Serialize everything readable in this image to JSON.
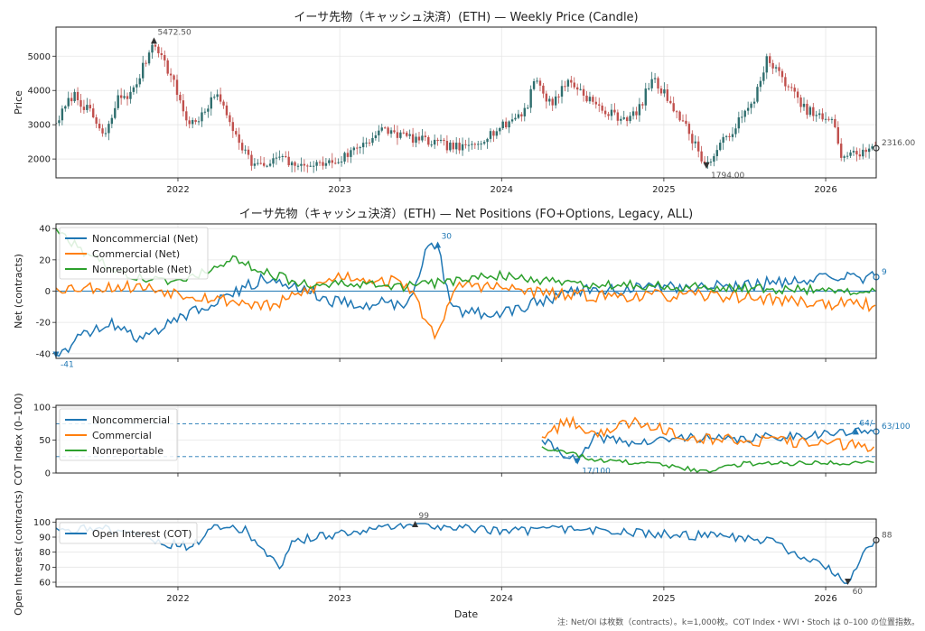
{
  "footnote": "注: Net/OI は枚数（contracts）。k=1,000枚。COT Index・WVI・Stoch は 0–100 の位置指数。",
  "colors": {
    "blue": "#1f77b4",
    "orange": "#ff7f0e",
    "green": "#2ca02c",
    "up": "#2f6e6e",
    "down": "#c0504d",
    "grey": "#555555"
  },
  "chart_data": [
    {
      "id": "price",
      "type": "candlestick",
      "title": "イーサ先物（キャッシュ決済）(ETH) — Weekly Price (Candle)",
      "ylabel": "Price",
      "xlabel": "",
      "xlim": [
        "2021-04-01",
        "2026-04-25"
      ],
      "ylim": [
        1450,
        5850
      ],
      "yticks": [
        2000,
        3000,
        4000,
        5000
      ],
      "grid": true,
      "anchors": [
        [
          "2021-04-01",
          3050
        ],
        [
          "2021-05-10",
          3900
        ],
        [
          "2021-06-20",
          3300
        ],
        [
          "2021-07-20",
          2600
        ],
        [
          "2021-08-20",
          3800
        ],
        [
          "2021-09-20",
          3900
        ],
        [
          "2021-11-08",
          5472.5
        ],
        [
          "2021-12-20",
          4300
        ],
        [
          "2022-01-25",
          3000
        ],
        [
          "2022-03-01",
          3300
        ],
        [
          "2022-04-01",
          4000
        ],
        [
          "2022-04-15",
          3400
        ],
        [
          "2022-06-15",
          1900
        ],
        [
          "2022-07-20",
          1700
        ],
        [
          "2022-08-15",
          2100
        ],
        [
          "2022-09-25",
          1700
        ],
        [
          "2022-12-30",
          1950
        ],
        [
          "2023-02-15",
          2400
        ],
        [
          "2023-04-10",
          2850
        ],
        [
          "2023-06-15",
          2600
        ],
        [
          "2023-08-25",
          2400
        ],
        [
          "2023-10-10",
          2300
        ],
        [
          "2024-01-10",
          3000
        ],
        [
          "2024-02-28",
          3500
        ],
        [
          "2024-03-12",
          4400
        ],
        [
          "2024-04-20",
          3600
        ],
        [
          "2024-06-01",
          4300
        ],
        [
          "2024-08-15",
          3400
        ],
        [
          "2024-09-30",
          3200
        ],
        [
          "2024-11-01",
          3300
        ],
        [
          "2024-12-05",
          4350
        ],
        [
          "2025-01-15",
          3700
        ],
        [
          "2025-02-25",
          2800
        ],
        [
          "2025-04-07",
          1794
        ],
        [
          "2025-05-20",
          2600
        ],
        [
          "2025-07-20",
          3600
        ],
        [
          "2025-08-20",
          4900
        ],
        [
          "2025-09-30",
          4300
        ],
        [
          "2025-11-10",
          3500
        ],
        [
          "2026-01-05",
          3100
        ],
        [
          "2026-01-20",
          3050
        ],
        [
          "2026-02-05",
          2100
        ],
        [
          "2026-03-10",
          2150
        ],
        [
          "2026-04-25",
          2316
        ]
      ],
      "annotations": [
        {
          "label": "5472.50",
          "x": "2021-11-08",
          "y": 5472.5,
          "kind": "max"
        },
        {
          "label": "1794.00",
          "x": "2025-04-07",
          "y": 1794,
          "kind": "min"
        },
        {
          "label": "2316.00",
          "x": "2026-04-25",
          "y": 2316,
          "kind": "last"
        }
      ]
    },
    {
      "id": "net",
      "type": "line",
      "title": "イーサ先物（キャッシュ決済）(ETH) — Net Positions (FO+Options, Legacy, ALL)",
      "ylabel": "Net (contracts)",
      "xlabel": "",
      "xlim": [
        "2021-04-01",
        "2026-04-25"
      ],
      "ylim": [
        -43,
        43
      ],
      "yticks": [
        -40,
        -20,
        0,
        20,
        40
      ],
      "grid": true,
      "legend": "top-left",
      "series": [
        {
          "name": "Noncommercial (Net)",
          "color": "#1f77b4",
          "anchors": [
            [
              "2021-04-01",
              -41
            ],
            [
              "2021-06-01",
              -28
            ],
            [
              "2021-08-01",
              -20
            ],
            [
              "2021-10-01",
              -30
            ],
            [
              "2022-01-01",
              -18
            ],
            [
              "2022-04-01",
              -5
            ],
            [
              "2022-08-01",
              10
            ],
            [
              "2023-01-01",
              -8
            ],
            [
              "2023-06-01",
              -8
            ],
            [
              "2023-07-20",
              28
            ],
            [
              "2023-08-10",
              30
            ],
            [
              "2023-09-10",
              -12
            ],
            [
              "2024-01-01",
              -15
            ],
            [
              "2024-06-01",
              0
            ],
            [
              "2025-01-01",
              2
            ],
            [
              "2025-06-01",
              3
            ],
            [
              "2026-01-01",
              8
            ],
            [
              "2026-04-25",
              9
            ]
          ]
        },
        {
          "name": "Commercial (Net)",
          "color": "#ff7f0e",
          "anchors": [
            [
              "2021-04-01",
              2
            ],
            [
              "2021-10-01",
              3
            ],
            [
              "2022-04-01",
              -5
            ],
            [
              "2022-08-01",
              -10
            ],
            [
              "2023-01-01",
              10
            ],
            [
              "2023-06-01",
              5
            ],
            [
              "2023-08-01",
              -28
            ],
            [
              "2023-10-01",
              5
            ],
            [
              "2024-06-01",
              -3
            ],
            [
              "2025-06-01",
              -3
            ],
            [
              "2026-01-01",
              -8
            ],
            [
              "2026-04-25",
              -9
            ]
          ]
        },
        {
          "name": "Nonreportable (Net)",
          "color": "#2ca02c",
          "anchors": [
            [
              "2021-04-01",
              40
            ],
            [
              "2021-06-01",
              25
            ],
            [
              "2021-09-01",
              10
            ],
            [
              "2022-01-01",
              5
            ],
            [
              "2022-05-01",
              20
            ],
            [
              "2022-10-01",
              5
            ],
            [
              "2023-06-01",
              3
            ],
            [
              "2024-01-01",
              10
            ],
            [
              "2024-06-01",
              5
            ],
            [
              "2025-06-01",
              2
            ],
            [
              "2026-04-25",
              0
            ]
          ]
        }
      ],
      "annotations": [
        {
          "label": "30",
          "x": "2023-08-10",
          "y": 30,
          "kind": "max"
        },
        {
          "label": "-41",
          "x": "2021-04-01",
          "y": -41,
          "kind": "min"
        },
        {
          "label": "9",
          "x": "2026-04-25",
          "y": 9,
          "kind": "last"
        }
      ]
    },
    {
      "id": "cot",
      "type": "line",
      "title": "",
      "ylabel": "COT Index (0–100)",
      "xlabel": "",
      "xlim": [
        "2021-04-01",
        "2026-04-25"
      ],
      "ylim": [
        0,
        103
      ],
      "yticks": [
        0,
        50,
        100
      ],
      "grid": true,
      "legend": "top-left",
      "hlines": [
        75,
        25
      ],
      "series": [
        {
          "name": "Noncommercial",
          "color": "#1f77b4",
          "anchors": [
            [
              "2024-04-01",
              50
            ],
            [
              "2024-05-20",
              30
            ],
            [
              "2024-06-20",
              17
            ],
            [
              "2024-08-01",
              55
            ],
            [
              "2024-11-01",
              45
            ],
            [
              "2025-03-01",
              55
            ],
            [
              "2025-06-01",
              50
            ],
            [
              "2025-09-01",
              55
            ],
            [
              "2026-01-01",
              60
            ],
            [
              "2026-04-25",
              63
            ]
          ]
        },
        {
          "name": "Commercial",
          "color": "#ff7f0e",
          "anchors": [
            [
              "2024-04-01",
              55
            ],
            [
              "2024-06-01",
              80
            ],
            [
              "2024-08-01",
              60
            ],
            [
              "2024-11-01",
              80
            ],
            [
              "2025-03-01",
              55
            ],
            [
              "2025-07-01",
              50
            ],
            [
              "2026-01-01",
              45
            ],
            [
              "2026-04-25",
              40
            ]
          ]
        },
        {
          "name": "Nonreportable",
          "color": "#2ca02c",
          "anchors": [
            [
              "2024-04-01",
              40
            ],
            [
              "2024-08-01",
              20
            ],
            [
              "2025-01-01",
              12
            ],
            [
              "2025-04-15",
              2
            ],
            [
              "2025-07-01",
              15
            ],
            [
              "2026-04-25",
              16
            ]
          ]
        }
      ],
      "annotations": [
        {
          "label": "17/100",
          "x": "2024-06-20",
          "y": 17,
          "kind": "min"
        },
        {
          "label": "64/",
          "x": "2026-03-10",
          "y": 64,
          "kind": "max"
        },
        {
          "label": "63/100",
          "x": "2026-04-25",
          "y": 63,
          "kind": "last"
        }
      ]
    },
    {
      "id": "oi",
      "type": "line",
      "title": "",
      "ylabel": "Open Interest (contracts)",
      "xlabel": "Date",
      "xlim": [
        "2021-04-01",
        "2026-04-25"
      ],
      "ylim": [
        57,
        102
      ],
      "yticks": [
        60,
        70,
        80,
        90,
        100
      ],
      "grid": true,
      "legend": "top-left",
      "xticks": [
        "2022",
        "2023",
        "2024",
        "2025",
        "2026"
      ],
      "series": [
        {
          "name": "Open Interest (COT)",
          "color": "#1f77b4",
          "anchors": [
            [
              "2021-04-01",
              96
            ],
            [
              "2021-09-01",
              95
            ],
            [
              "2021-12-01",
              86
            ],
            [
              "2022-02-01",
              84
            ],
            [
              "2022-04-01",
              97
            ],
            [
              "2022-06-01",
              95
            ],
            [
              "2022-08-20",
              68
            ],
            [
              "2022-09-20",
              88
            ],
            [
              "2023-01-01",
              92
            ],
            [
              "2023-06-20",
              99
            ],
            [
              "2024-01-01",
              94
            ],
            [
              "2024-06-01",
              95
            ],
            [
              "2025-01-01",
              92
            ],
            [
              "2025-06-01",
              90
            ],
            [
              "2025-09-01",
              88
            ],
            [
              "2025-11-15",
              75
            ],
            [
              "2026-01-01",
              70
            ],
            [
              "2026-02-20",
              60
            ],
            [
              "2026-03-20",
              75
            ],
            [
              "2026-04-25",
              88
            ]
          ]
        }
      ],
      "annotations": [
        {
          "label": "99",
          "x": "2023-06-20",
          "y": 99,
          "kind": "max"
        },
        {
          "label": "60",
          "x": "2026-02-20",
          "y": 60,
          "kind": "min"
        },
        {
          "label": "88",
          "x": "2026-04-25",
          "y": 88,
          "kind": "last"
        }
      ]
    }
  ]
}
